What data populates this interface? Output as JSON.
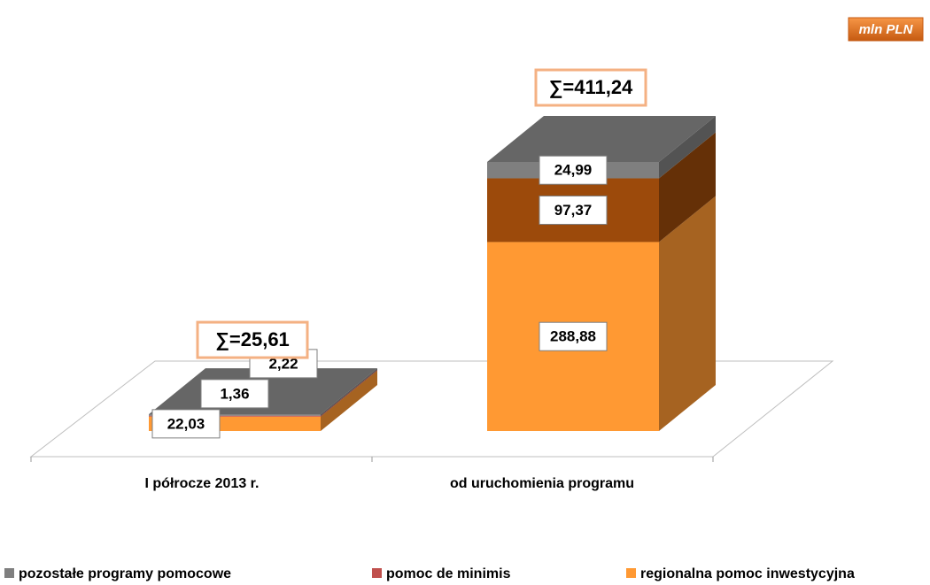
{
  "chart_data": {
    "type": "bar3d_stacked",
    "unit": "mln PLN",
    "categories": [
      "I półrocze 2013 r.",
      "od uruchomienia programu"
    ],
    "series": [
      {
        "name": "regionalna pomoc inwestycyjna",
        "color": "#ff9933",
        "values": [
          22.03,
          288.88
        ],
        "value_labels": [
          "22,03",
          "288,88"
        ]
      },
      {
        "name": "pomoc de minimis",
        "color": "#c0504d",
        "point_colors": [
          "#c0504d",
          "#9c4a0b"
        ],
        "values": [
          1.36,
          97.37
        ],
        "value_labels": [
          "1,36",
          "97,37"
        ]
      },
      {
        "name": "pozostałe programy pomocowe",
        "color": "#7f7f7f",
        "values": [
          2.22,
          24.99
        ],
        "value_labels": [
          "2,22",
          "24,99"
        ]
      }
    ],
    "annotations": [
      "∑=25,61",
      "∑=411,24"
    ],
    "legend": "bottom"
  }
}
